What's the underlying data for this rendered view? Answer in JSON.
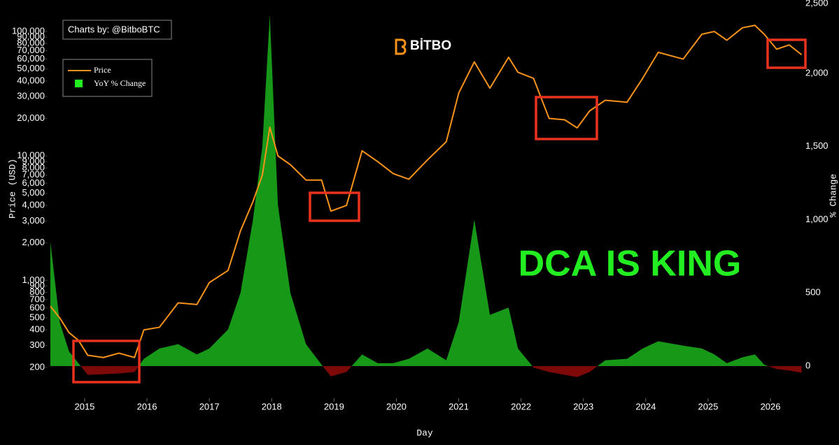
{
  "chart_data": {
    "type": "line-area",
    "source": "Charts by: @BitboBTC",
    "logo": "BİTBO",
    "annotation": "DCA IS KING",
    "x_label": "Day",
    "y_label": "Price (USD)",
    "y2_label": "% Change",
    "legend": "top-left",
    "log_y": true,
    "grid": false,
    "x": [
      2014.45,
      2014.6,
      2014.75,
      2014.9,
      2015.05,
      2015.3,
      2015.55,
      2015.8,
      2015.95,
      2016.2,
      2016.5,
      2016.8,
      2017.0,
      2017.3,
      2017.5,
      2017.7,
      2017.85,
      2017.97,
      2018.1,
      2018.3,
      2018.55,
      2018.8,
      2018.95,
      2019.2,
      2019.45,
      2019.7,
      2019.95,
      2020.2,
      2020.5,
      2020.8,
      2021.0,
      2021.25,
      2021.5,
      2021.8,
      2021.95,
      2022.2,
      2022.45,
      2022.7,
      2022.9,
      2023.1,
      2023.35,
      2023.7,
      2023.95,
      2024.2,
      2024.6,
      2024.9,
      2025.1,
      2025.3,
      2025.55,
      2025.75,
      2025.9,
      2026.1,
      2026.3,
      2026.5
    ],
    "series": [
      {
        "name": "Price",
        "color": "#f7931a",
        "axis": "y",
        "values": [
          620,
          500,
          380,
          330,
          250,
          240,
          260,
          240,
          400,
          420,
          660,
          640,
          960,
          1200,
          2500,
          4300,
          7000,
          17000,
          10000,
          8500,
          6400,
          6400,
          3600,
          4000,
          11000,
          9000,
          7200,
          6500,
          9300,
          13000,
          32000,
          57000,
          35000,
          62000,
          47000,
          42000,
          20000,
          19500,
          16800,
          23000,
          28000,
          27000,
          42000,
          68000,
          60000,
          95000,
          100000,
          85000,
          107000,
          112000,
          95000,
          72000,
          78000,
          65000
        ]
      },
      {
        "name": "YoY % Change",
        "color": "#1aa81a",
        "negative_color": "#8b0a0a",
        "axis": "y2",
        "values": [
          850,
          300,
          100,
          20,
          -60,
          -55,
          -50,
          -40,
          50,
          120,
          150,
          80,
          120,
          250,
          500,
          1000,
          1500,
          2400,
          1100,
          500,
          150,
          10,
          -70,
          -40,
          80,
          20,
          20,
          50,
          120,
          40,
          300,
          1000,
          350,
          400,
          120,
          -10,
          -40,
          -60,
          -75,
          -40,
          40,
          50,
          120,
          170,
          140,
          120,
          80,
          20,
          60,
          80,
          10,
          -20,
          -30,
          -45
        ]
      }
    ],
    "xlim": [
      2014.4,
      2026.6
    ],
    "xticks": [
      2015,
      2016,
      2017,
      2018,
      2019,
      2020,
      2021,
      2022,
      2023,
      2024,
      2025,
      2026
    ],
    "ylim": [
      113,
      179000
    ],
    "yticks": [
      200,
      300,
      400,
      500,
      600,
      700,
      800,
      900,
      {
        "value": 1000,
        "label": "1,000"
      },
      {
        "value": 2000,
        "label": "2,000"
      },
      {
        "value": 3000,
        "label": "3,000"
      },
      {
        "value": 4000,
        "label": "4,000"
      },
      {
        "value": 5000,
        "label": "5,000"
      },
      {
        "value": 6000,
        "label": "6,000"
      },
      {
        "value": 7000,
        "label": "7,000"
      },
      {
        "value": 8000,
        "label": "8,000"
      },
      {
        "value": 9000,
        "label": "9,000"
      },
      {
        "value": 10000,
        "label": "10,000"
      },
      {
        "value": 20000,
        "label": "20,000"
      },
      {
        "value": 30000,
        "label": "30,000"
      },
      {
        "value": 40000,
        "label": "40,000"
      },
      {
        "value": 50000,
        "label": "50,000"
      },
      {
        "value": 60000,
        "label": "60,000"
      },
      {
        "value": 70000,
        "label": "70,000"
      },
      {
        "value": 80000,
        "label": "80,000"
      },
      {
        "value": 90000,
        "label": "90,000"
      },
      {
        "value": 100000,
        "label": "100,000"
      }
    ],
    "y2lim": [
      -219,
      2500
    ],
    "y2ticks": [
      0,
      500,
      {
        "value": 1000,
        "label": "1,000"
      },
      {
        "value": 1500,
        "label": "1,500"
      },
      {
        "value": 2000,
        "label": "2,000"
      },
      {
        "value": 2500,
        "label": "2,500"
      }
    ]
  }
}
